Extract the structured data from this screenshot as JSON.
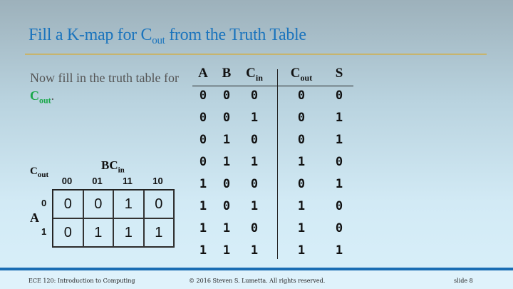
{
  "title": {
    "pre": "Fill a K-map for C",
    "sub": "out",
    "post": " from the Truth Table"
  },
  "prompt": {
    "text": "Now fill in the truth table for ",
    "var": "C",
    "var_sub": "out",
    "end": "."
  },
  "truth_table": {
    "headers": [
      {
        "main": "A",
        "sub": ""
      },
      {
        "main": "B",
        "sub": ""
      },
      {
        "main": "C",
        "sub": "in"
      },
      {
        "main": "C",
        "sub": "out"
      },
      {
        "main": "S",
        "sub": ""
      }
    ],
    "rows": [
      [
        "0",
        "0",
        "0",
        "0",
        "0"
      ],
      [
        "0",
        "0",
        "1",
        "0",
        "1"
      ],
      [
        "0",
        "1",
        "0",
        "0",
        "1"
      ],
      [
        "0",
        "1",
        "1",
        "1",
        "0"
      ],
      [
        "1",
        "0",
        "0",
        "0",
        "1"
      ],
      [
        "1",
        "0",
        "1",
        "1",
        "0"
      ],
      [
        "1",
        "1",
        "0",
        "1",
        "0"
      ],
      [
        "1",
        "1",
        "1",
        "1",
        "1"
      ]
    ]
  },
  "kmap": {
    "name": {
      "main": "C",
      "sub": "out"
    },
    "col_var": {
      "main": "BC",
      "sub": "in"
    },
    "row_var": "A",
    "col_labels": [
      "00",
      "01",
      "11",
      "10"
    ],
    "row_labels": [
      "0",
      "1"
    ],
    "cells": [
      [
        "0",
        "0",
        "1",
        "0"
      ],
      [
        "0",
        "1",
        "1",
        "1"
      ]
    ]
  },
  "footer": {
    "course": "ECE 120: Introduction to Computing",
    "copyright": "© 2016 Steven S. Lumetta.  All rights reserved.",
    "slide": "slide 8"
  },
  "colors": {
    "title": "#1b74bd",
    "highlight": "#1aa84a",
    "footer_bar": "#1a6db3",
    "rule": "#c7b46e"
  }
}
